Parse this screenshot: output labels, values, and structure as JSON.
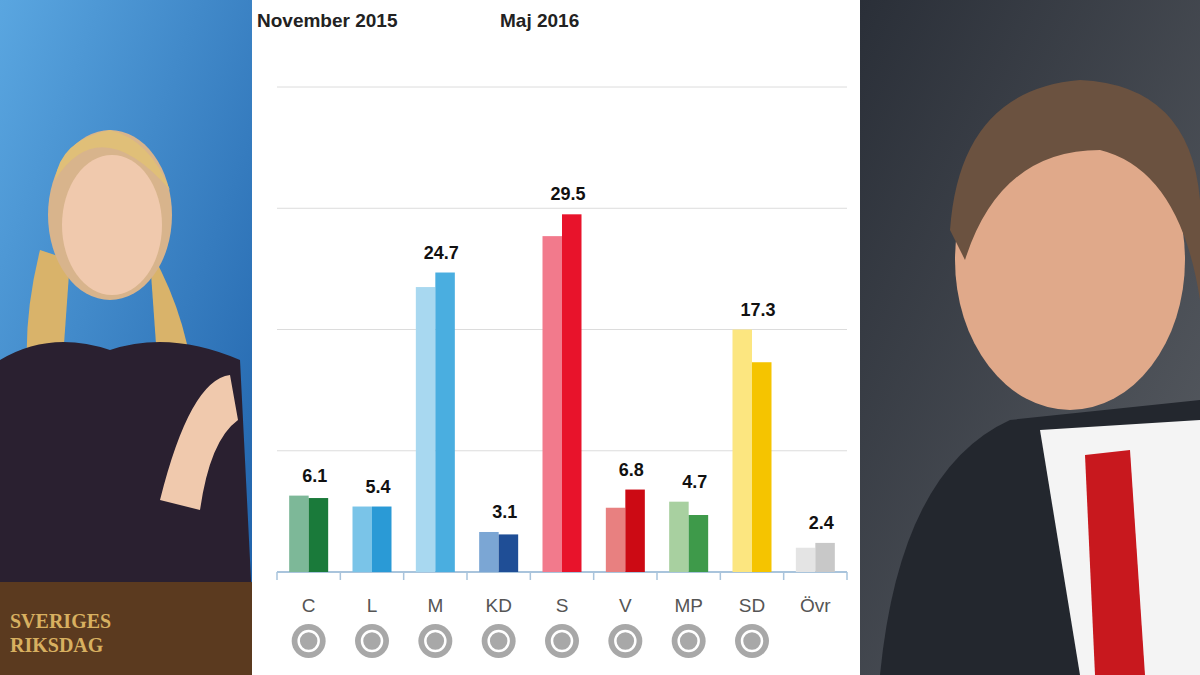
{
  "chart_data": {
    "type": "bar",
    "categories": [
      "C",
      "L",
      "M",
      "KD",
      "S",
      "V",
      "MP",
      "SD",
      "Övr"
    ],
    "series": [
      {
        "name": "November 2015",
        "colors": [
          "#7db898",
          "#7ac4e8",
          "#a8d8f0",
          "#7ba6d4",
          "#f27a8c",
          "#e88080",
          "#a8d0a0",
          "#fce680",
          "#e4e4e4"
        ],
        "values": [
          6.3,
          5.4,
          23.5,
          3.3,
          27.7,
          5.3,
          5.8,
          20.0,
          2.0
        ]
      },
      {
        "name": "Maj 2016",
        "colors": [
          "#1a7a3a",
          "#2a9ad6",
          "#4aaee0",
          "#1f4e96",
          "#e8132b",
          "#cc0a14",
          "#3e9a4a",
          "#f5c400",
          "#c8c8c8"
        ],
        "values": [
          6.1,
          5.4,
          24.7,
          3.1,
          29.5,
          6.8,
          4.7,
          17.3,
          2.4
        ],
        "data_labels": true
      }
    ],
    "ylim": [
      0,
      40
    ],
    "yticks": [
      0,
      10,
      20,
      30,
      40
    ],
    "grid": true,
    "tick_labels": "x",
    "legend": "top-left",
    "annotations": [
      "SVERIGES RIKSDAG"
    ]
  }
}
